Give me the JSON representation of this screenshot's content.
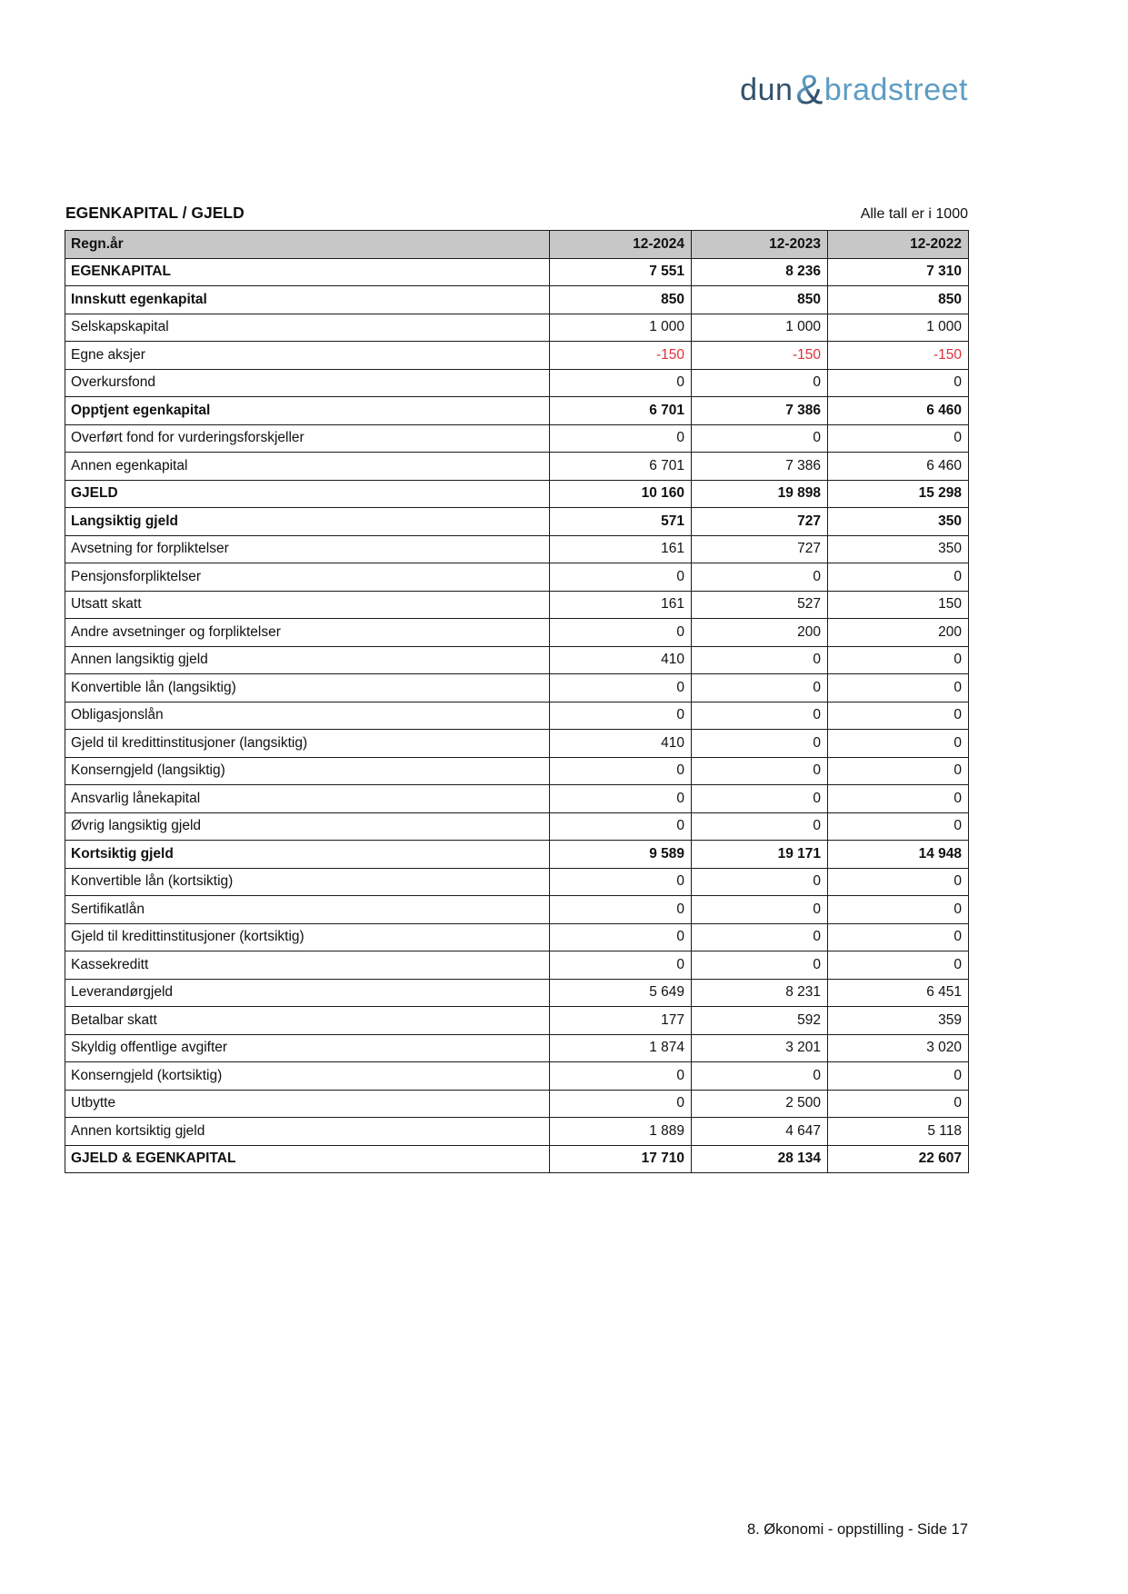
{
  "logo": {
    "part1": "dun",
    "amp": "&",
    "part2": "bradstreet",
    "color_dark": "#33516c",
    "color_light": "#5e9cc3"
  },
  "header": {
    "title": "EGENKAPITAL / GJELD",
    "note": "Alle tall er i 1000"
  },
  "table": {
    "columns": [
      "Regn.år",
      "12-2024",
      "12-2023",
      "12-2022"
    ],
    "header_bg": "#c7c7c7",
    "negative_color": "#e0303a",
    "rows": [
      {
        "label": "EGENKAPITAL",
        "values": [
          "7 551",
          "8 236",
          "7 310"
        ],
        "bold": true
      },
      {
        "label": "Innskutt egenkapital",
        "values": [
          "850",
          "850",
          "850"
        ],
        "bold": true
      },
      {
        "label": "Selskapskapital",
        "values": [
          "1 000",
          "1 000",
          "1 000"
        ],
        "bold": false
      },
      {
        "label": "Egne aksjer",
        "values": [
          "-150",
          "-150",
          "-150"
        ],
        "bold": false
      },
      {
        "label": "Overkursfond",
        "values": [
          "0",
          "0",
          "0"
        ],
        "bold": false
      },
      {
        "label": "Opptjent egenkapital",
        "values": [
          "6 701",
          "7 386",
          "6 460"
        ],
        "bold": true
      },
      {
        "label": "Overført fond for vurderingsforskjeller",
        "values": [
          "0",
          "0",
          "0"
        ],
        "bold": false
      },
      {
        "label": "Annen egenkapital",
        "values": [
          "6 701",
          "7 386",
          "6 460"
        ],
        "bold": false
      },
      {
        "label": "GJELD",
        "values": [
          "10 160",
          "19 898",
          "15 298"
        ],
        "bold": true
      },
      {
        "label": "Langsiktig gjeld",
        "values": [
          "571",
          "727",
          "350"
        ],
        "bold": true
      },
      {
        "label": "Avsetning for forpliktelser",
        "values": [
          "161",
          "727",
          "350"
        ],
        "bold": false
      },
      {
        "label": "Pensjonsforpliktelser",
        "values": [
          "0",
          "0",
          "0"
        ],
        "bold": false
      },
      {
        "label": "Utsatt skatt",
        "values": [
          "161",
          "527",
          "150"
        ],
        "bold": false
      },
      {
        "label": "Andre avsetninger og forpliktelser",
        "values": [
          "0",
          "200",
          "200"
        ],
        "bold": false
      },
      {
        "label": "Annen langsiktig gjeld",
        "values": [
          "410",
          "0",
          "0"
        ],
        "bold": false
      },
      {
        "label": "Konvertible lån (langsiktig)",
        "values": [
          "0",
          "0",
          "0"
        ],
        "bold": false
      },
      {
        "label": "Obligasjonslån",
        "values": [
          "0",
          "0",
          "0"
        ],
        "bold": false
      },
      {
        "label": "Gjeld til kredittinstitusjoner (langsiktig)",
        "values": [
          "410",
          "0",
          "0"
        ],
        "bold": false
      },
      {
        "label": "Konserngjeld (langsiktig)",
        "values": [
          "0",
          "0",
          "0"
        ],
        "bold": false
      },
      {
        "label": "Ansvarlig lånekapital",
        "values": [
          "0",
          "0",
          "0"
        ],
        "bold": false
      },
      {
        "label": "Øvrig langsiktig gjeld",
        "values": [
          "0",
          "0",
          "0"
        ],
        "bold": false
      },
      {
        "label": "Kortsiktig gjeld",
        "values": [
          "9 589",
          "19 171",
          "14 948"
        ],
        "bold": true
      },
      {
        "label": "Konvertible lån (kortsiktig)",
        "values": [
          "0",
          "0",
          "0"
        ],
        "bold": false
      },
      {
        "label": "Sertifikatlån",
        "values": [
          "0",
          "0",
          "0"
        ],
        "bold": false
      },
      {
        "label": "Gjeld til kredittinstitusjoner (kortsiktig)",
        "values": [
          "0",
          "0",
          "0"
        ],
        "bold": false
      },
      {
        "label": "Kassekreditt",
        "values": [
          "0",
          "0",
          "0"
        ],
        "bold": false
      },
      {
        "label": "Leverandørgjeld",
        "values": [
          "5 649",
          "8 231",
          "6 451"
        ],
        "bold": false
      },
      {
        "label": "Betalbar skatt",
        "values": [
          "177",
          "592",
          "359"
        ],
        "bold": false
      },
      {
        "label": "Skyldig offentlige avgifter",
        "values": [
          "1 874",
          "3 201",
          "3 020"
        ],
        "bold": false
      },
      {
        "label": "Konserngjeld (kortsiktig)",
        "values": [
          "0",
          "0",
          "0"
        ],
        "bold": false
      },
      {
        "label": "Utbytte",
        "values": [
          "0",
          "2 500",
          "0"
        ],
        "bold": false
      },
      {
        "label": "Annen kortsiktig gjeld",
        "values": [
          "1 889",
          "4 647",
          "5 118"
        ],
        "bold": false
      },
      {
        "label": "GJELD & EGENKAPITAL",
        "values": [
          "17 710",
          "28 134",
          "22 607"
        ],
        "bold": true
      }
    ]
  },
  "footer": {
    "text": "8. Økonomi - oppstilling - Side 17"
  }
}
